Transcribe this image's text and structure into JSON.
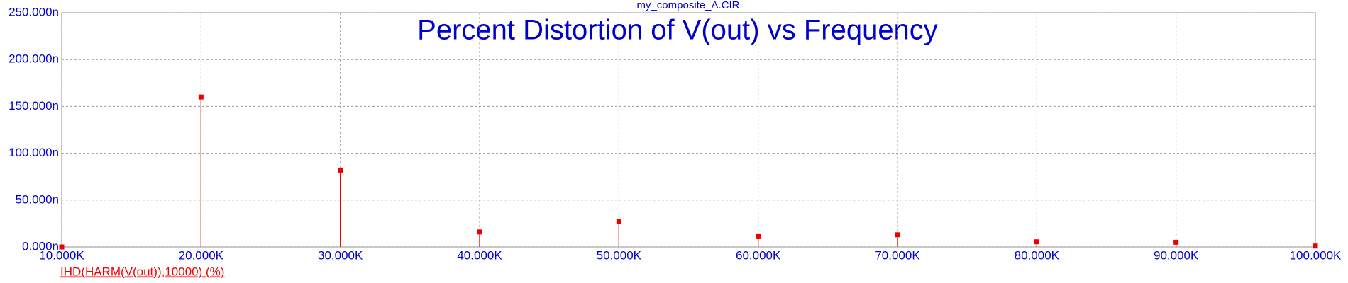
{
  "chart_data": {
    "type": "stem",
    "file_name": "my_composite_A.CIR",
    "title": "Percent Distortion of V(out) vs Frequency",
    "x": [
      10000,
      20000,
      30000,
      40000,
      50000,
      60000,
      70000,
      80000,
      90000,
      100000
    ],
    "series": [
      {
        "name": "IHD(HARM(V(out)),10000) (%)",
        "color": "#ee0000",
        "values": [
          0,
          160,
          82,
          16,
          27,
          11,
          13,
          5.5,
          5,
          1
        ]
      }
    ],
    "xlim": [
      10000,
      100000
    ],
    "xticks": [
      {
        "value": 10000,
        "label": "10.000K"
      },
      {
        "value": 20000,
        "label": "20.000K"
      },
      {
        "value": 30000,
        "label": "30.000K"
      },
      {
        "value": 40000,
        "label": "40.000K"
      },
      {
        "value": 50000,
        "label": "50.000K"
      },
      {
        "value": 60000,
        "label": "60.000K"
      },
      {
        "value": 70000,
        "label": "70.000K"
      },
      {
        "value": 80000,
        "label": "80.000K"
      },
      {
        "value": 90000,
        "label": "90.000K"
      },
      {
        "value": 100000,
        "label": "100.000K"
      }
    ],
    "ylim": [
      0,
      250
    ],
    "yticks": [
      {
        "value": 0,
        "label": "0.000n"
      },
      {
        "value": 50,
        "label": "50.000n"
      },
      {
        "value": 100,
        "label": "100.000n"
      },
      {
        "value": 150,
        "label": "150.000n"
      },
      {
        "value": 200,
        "label": "200.000n"
      },
      {
        "value": 250,
        "label": "250.000n"
      }
    ],
    "grid": true
  }
}
